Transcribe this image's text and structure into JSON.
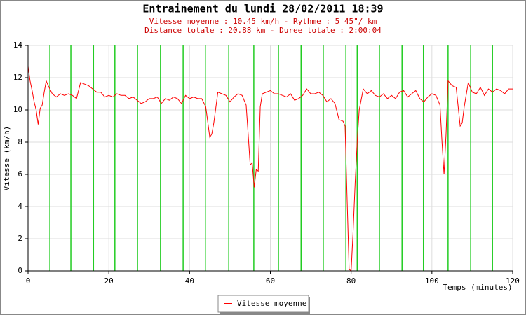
{
  "chart_data": {
    "type": "line",
    "title": "Entrainement du lundi 28/02/2011 18:39",
    "subtitle": [
      "Vitesse moyenne : 10.45 km/h - Rythme : 5'45\"/ km",
      "Distance totale : 20.88 km - Duree totale : 2:00:04"
    ],
    "xlabel": "Temps (minutes)",
    "ylabel": "Vitesse (km/h)",
    "xlim": [
      0,
      120
    ],
    "ylim": [
      0,
      14
    ],
    "xticks": [
      0,
      20,
      40,
      60,
      80,
      100,
      120
    ],
    "yticks": [
      0,
      2,
      4,
      6,
      8,
      10,
      12,
      14
    ],
    "grid": true,
    "legend": "bottom",
    "markers": {
      "color": "#22cc22",
      "x": [
        5.4,
        10.6,
        16.2,
        21.5,
        27.1,
        32.8,
        38.4,
        43.9,
        49.7,
        55.9,
        62.0,
        67.6,
        73.1,
        78.7,
        81.5,
        87.0,
        92.6,
        97.9,
        104.0,
        109.6,
        115.0
      ]
    },
    "x": [
      0,
      0.5,
      1,
      1.5,
      2,
      2.5,
      3,
      3.5,
      4,
      4.5,
      5,
      6,
      7,
      8,
      9,
      10,
      11,
      12,
      13,
      14,
      15,
      16,
      17,
      18,
      19,
      20,
      21,
      22,
      23,
      24,
      25,
      26,
      27,
      28,
      29,
      30,
      31,
      32,
      33,
      34,
      35,
      36,
      37,
      38,
      39,
      40,
      41,
      42,
      43,
      44,
      45,
      45.5,
      46,
      47,
      48,
      49,
      50,
      51,
      52,
      53,
      54,
      54.5,
      55,
      55.5,
      56,
      56.5,
      57,
      57.5,
      58,
      59,
      60,
      61,
      62,
      63,
      64,
      65,
      66,
      67,
      68,
      69,
      70,
      71,
      72,
      73,
      74,
      75,
      76,
      77,
      78,
      78.5,
      79,
      79.5,
      80,
      80.5,
      81,
      81.5,
      82,
      83,
      84,
      85,
      86,
      87,
      88,
      89,
      90,
      91,
      92,
      93,
      94,
      95,
      96,
      97,
      98,
      99,
      100,
      101,
      102,
      102.5,
      103,
      103.5,
      104,
      105,
      106,
      107,
      107.5,
      108,
      109,
      110,
      111,
      112,
      113,
      114,
      115,
      116,
      117,
      118,
      119,
      120
    ],
    "series": [
      {
        "name": "Vitesse moyenne",
        "color": "#ff0000",
        "values": [
          12.7,
          11.8,
          11.2,
          10.5,
          10,
          9.1,
          10.1,
          10.3,
          11.1,
          11.8,
          11.5,
          11,
          10.8,
          11,
          10.9,
          11,
          10.9,
          10.7,
          11.7,
          11.6,
          11.5,
          11.3,
          11.1,
          11.1,
          10.8,
          10.9,
          10.8,
          11,
          10.9,
          10.9,
          10.7,
          10.8,
          10.6,
          10.4,
          10.5,
          10.7,
          10.7,
          10.8,
          10.4,
          10.7,
          10.6,
          10.8,
          10.7,
          10.4,
          10.9,
          10.7,
          10.8,
          10.7,
          10.7,
          10.2,
          8.3,
          8.5,
          9.2,
          11.1,
          11,
          10.9,
          10.5,
          10.8,
          11,
          10.9,
          10.3,
          8.5,
          6.6,
          6.7,
          5.2,
          6.3,
          6.2,
          10.2,
          11,
          11.1,
          11.2,
          11,
          11,
          10.9,
          10.8,
          11,
          10.6,
          10.7,
          10.9,
          11.3,
          11,
          11,
          11.1,
          10.9,
          10.5,
          10.7,
          10.4,
          9.4,
          9.3,
          9,
          4.5,
          0.1,
          0,
          2.5,
          5.5,
          8,
          10,
          11.3,
          11,
          11.2,
          10.9,
          10.8,
          11,
          10.7,
          10.9,
          10.7,
          11.1,
          11.2,
          10.8,
          11,
          11.2,
          10.7,
          10.5,
          10.8,
          11,
          10.9,
          10.3,
          8,
          6,
          8.5,
          11.8,
          11.5,
          11.4,
          9,
          9.2,
          10.2,
          11.7,
          11.1,
          11,
          11.4,
          10.9,
          11.3,
          11.1,
          11.3,
          11.2,
          11,
          11.3,
          11.3
        ]
      }
    ]
  }
}
